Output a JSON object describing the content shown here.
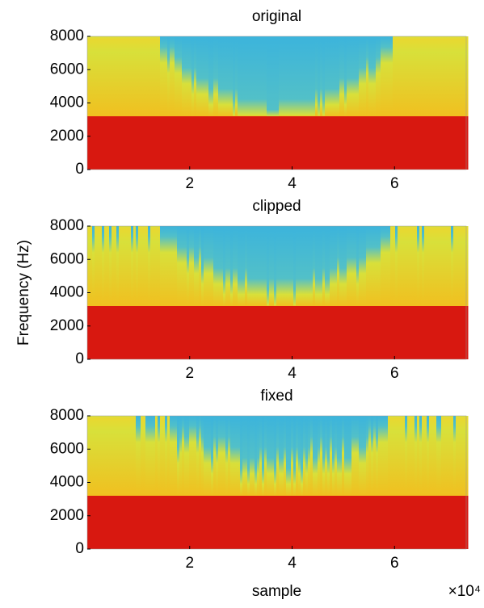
{
  "chart_data": [
    {
      "type": "spectrogram",
      "title": "original",
      "xlim": [
        0,
        7.4
      ],
      "xticks": [
        2,
        4,
        6
      ],
      "ylim": [
        0,
        8000
      ],
      "yticks": [
        0,
        2000,
        4000,
        6000,
        8000
      ]
    },
    {
      "type": "spectrogram",
      "title": "clipped",
      "ylabel": "Frequency (Hz)",
      "xlim": [
        0,
        7.4
      ],
      "xticks": [
        2,
        4,
        6
      ],
      "ylim": [
        0,
        8000
      ],
      "yticks": [
        0,
        2000,
        4000,
        6000,
        8000
      ]
    },
    {
      "type": "spectrogram",
      "title": "fixed",
      "xlabel": "sample",
      "x_multiplier": "×10⁴",
      "xlim": [
        0,
        7.4
      ],
      "xticks": [
        2,
        4,
        6
      ],
      "ylim": [
        0,
        8000
      ],
      "yticks": [
        0,
        2000,
        4000,
        6000,
        8000
      ]
    }
  ]
}
